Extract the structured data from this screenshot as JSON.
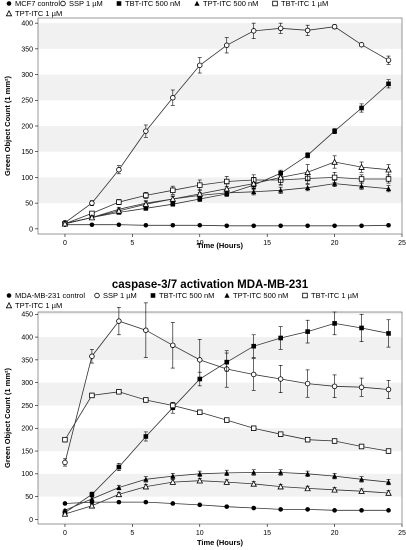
{
  "chart_data": [
    {
      "type": "line",
      "title": "",
      "xlabel": "Time (Hours)",
      "ylabel": "Green Object Count (1 mm²)",
      "xlim": [
        -2,
        25
      ],
      "ylim": [
        -10,
        410
      ],
      "xticks": [
        0,
        5,
        10,
        15,
        20,
        25
      ],
      "yticks": [
        0,
        50,
        100,
        150,
        200,
        250,
        300,
        350,
        400
      ],
      "x": [
        0,
        2,
        4,
        6,
        8,
        10,
        12,
        14,
        16,
        18,
        20,
        22,
        24
      ],
      "grid": "horizontal bands",
      "legend": "top",
      "series": [
        {
          "name": "MCF7 control",
          "marker": "filled-circle",
          "values": [
            8,
            8,
            8,
            7,
            7,
            7,
            6,
            6,
            6,
            6,
            6,
            6,
            7
          ],
          "errors": [
            1,
            1,
            1,
            1,
            1,
            1,
            1,
            1,
            1,
            1,
            1,
            1,
            1
          ]
        },
        {
          "name": "SSP 1 µM",
          "marker": "open-circle",
          "values": [
            12,
            50,
            115,
            190,
            255,
            318,
            357,
            385,
            390,
            386,
            393,
            358,
            328
          ],
          "errors": [
            3,
            5,
            8,
            12,
            15,
            15,
            15,
            15,
            10,
            10,
            4,
            3,
            8
          ]
        },
        {
          "name": "TBT-ITC 500 nM",
          "marker": "filled-square",
          "values": [
            10,
            22,
            32,
            40,
            48,
            58,
            68,
            85,
            108,
            143,
            190,
            235,
            282
          ],
          "errors": [
            2,
            3,
            3,
            4,
            4,
            5,
            5,
            6,
            6,
            5,
            5,
            8,
            8
          ]
        },
        {
          "name": "TPT-ITC 500 nM",
          "marker": "filled-triangle",
          "values": [
            10,
            22,
            38,
            50,
            58,
            65,
            70,
            72,
            75,
            80,
            88,
            83,
            78
          ],
          "errors": [
            2,
            3,
            4,
            5,
            5,
            6,
            6,
            6,
            6,
            6,
            6,
            6,
            6
          ]
        },
        {
          "name": "TBT-ITC 1 µM",
          "marker": "open-square",
          "values": [
            10,
            30,
            52,
            65,
            75,
            85,
            92,
            95,
            95,
            98,
            100,
            97,
            97
          ],
          "errors": [
            2,
            3,
            5,
            6,
            8,
            10,
            10,
            10,
            10,
            10,
            10,
            8,
            8
          ]
        },
        {
          "name": "TPT-ITC 1 µM",
          "marker": "open-triangle",
          "values": [
            10,
            22,
            35,
            48,
            58,
            68,
            78,
            88,
            100,
            110,
            130,
            120,
            115
          ],
          "errors": [
            2,
            3,
            4,
            5,
            6,
            8,
            10,
            12,
            14,
            15,
            12,
            10,
            10
          ]
        }
      ]
    },
    {
      "type": "line",
      "title": "caspase-3/7 activation MDA-MB-231",
      "xlabel": "Time (Hours)",
      "ylabel": "Green Object Count (1 mm²)",
      "xlim": [
        -2,
        25
      ],
      "ylim": [
        -10,
        455
      ],
      "xticks": [
        0,
        5,
        10,
        15,
        20,
        25
      ],
      "yticks": [
        0,
        50,
        100,
        150,
        200,
        250,
        300,
        350,
        400,
        450
      ],
      "x": [
        0,
        2,
        4,
        6,
        8,
        10,
        12,
        14,
        16,
        18,
        20,
        22,
        24
      ],
      "grid": "horizontal bands",
      "legend": "top",
      "series": [
        {
          "name": "MDA-MB-231 control",
          "marker": "filled-circle",
          "values": [
            35,
            38,
            38,
            38,
            35,
            32,
            28,
            25,
            22,
            22,
            20,
            20,
            20
          ],
          "errors": [
            2,
            2,
            2,
            2,
            2,
            2,
            2,
            2,
            2,
            2,
            2,
            2,
            2
          ]
        },
        {
          "name": "SSP 1 µM",
          "marker": "open-circle",
          "values": [
            125,
            358,
            435,
            415,
            382,
            350,
            330,
            318,
            308,
            298,
            292,
            290,
            285
          ],
          "errors": [
            8,
            15,
            30,
            60,
            50,
            45,
            40,
            35,
            30,
            30,
            25,
            20,
            20
          ]
        },
        {
          "name": "TBT-ITC 500 nM",
          "marker": "filled-square",
          "values": [
            15,
            55,
            115,
            182,
            245,
            308,
            345,
            380,
            398,
            412,
            430,
            420,
            408
          ],
          "errors": [
            3,
            5,
            8,
            10,
            12,
            15,
            20,
            25,
            25,
            25,
            25,
            30,
            30
          ]
        },
        {
          "name": "TPT-ITC 500 nM",
          "marker": "filled-triangle",
          "values": [
            20,
            45,
            70,
            88,
            95,
            100,
            102,
            103,
            103,
            100,
            95,
            88,
            82
          ],
          "errors": [
            2,
            4,
            5,
            6,
            6,
            6,
            6,
            6,
            6,
            6,
            6,
            6,
            6
          ]
        },
        {
          "name": "TBT-ITC 1 µM",
          "marker": "open-square",
          "values": [
            175,
            272,
            280,
            262,
            250,
            235,
            218,
            200,
            187,
            175,
            172,
            160,
            150
          ],
          "errors": [
            5,
            5,
            5,
            5,
            5,
            5,
            5,
            5,
            5,
            5,
            5,
            5,
            5
          ]
        },
        {
          "name": "TPT-ITC 1 µM",
          "marker": "open-triangle",
          "values": [
            12,
            30,
            55,
            72,
            82,
            85,
            82,
            78,
            72,
            68,
            65,
            62,
            58
          ],
          "errors": [
            2,
            3,
            4,
            5,
            5,
            5,
            5,
            5,
            5,
            5,
            5,
            5,
            5
          ]
        }
      ]
    }
  ]
}
